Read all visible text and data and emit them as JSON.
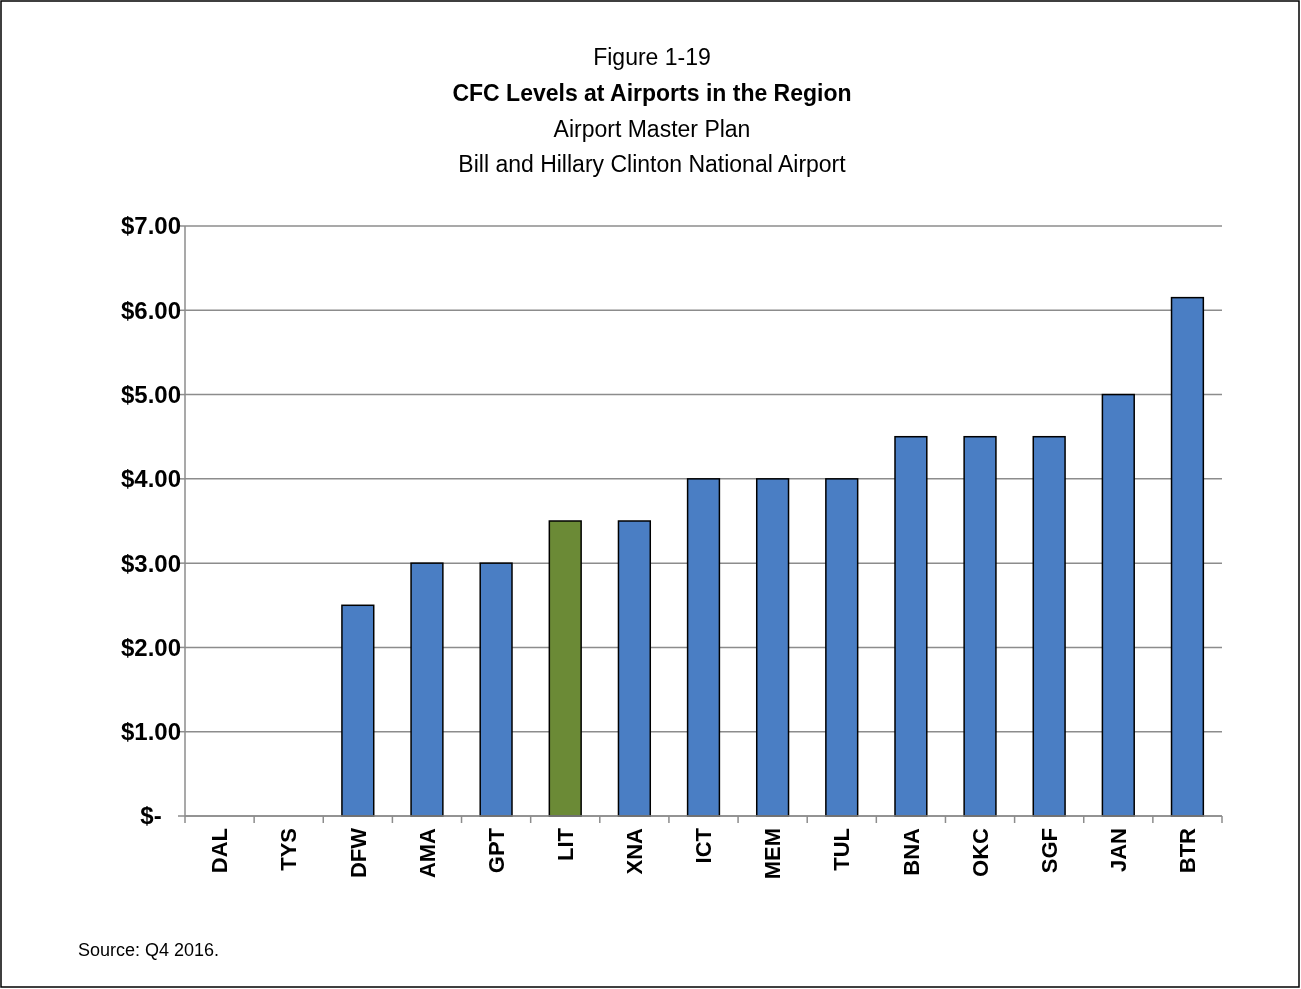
{
  "chart_data": {
    "type": "bar",
    "title": "CFC Levels at Airports in the Region",
    "subtitle": "Airport Master Plan\nBill and Hillary Clinton National Airport",
    "annotations": [
      "Figure 1-19",
      "Source: Q4 2016."
    ],
    "categories": [
      "DAL",
      "TYS",
      "DFW",
      "AMA",
      "GPT",
      "LIT",
      "XNA",
      "ICT",
      "MEM",
      "TUL",
      "BNA",
      "OKC",
      "SGF",
      "JAN",
      "BTR"
    ],
    "values": [
      0,
      0,
      2.5,
      3,
      3,
      3.5,
      3.5,
      4,
      4,
      4,
      4.5,
      4.5,
      4.5,
      5,
      6.15
    ],
    "colors": [
      "#4a7ec4",
      "#4a7ec4",
      "#4a7ec4",
      "#4a7ec4",
      "#4a7ec4",
      "#6b8a36",
      "#4a7ec4",
      "#4a7ec4",
      "#4a7ec4",
      "#4a7ec4",
      "#4a7ec4",
      "#4a7ec4",
      "#4a7ec4",
      "#4a7ec4",
      "#4a7ec4"
    ],
    "ylim": [
      0,
      7
    ],
    "yticks": [
      {
        "value": 0,
        "label": "$-"
      },
      {
        "value": 1,
        "label": "$1.00"
      },
      {
        "value": 2,
        "label": "$2.00"
      },
      {
        "value": 3,
        "label": "$3.00"
      },
      {
        "value": 4,
        "label": "$4.00"
      },
      {
        "value": 5,
        "label": "$5.00"
      },
      {
        "value": 6,
        "label": "$6.00"
      },
      {
        "value": 7,
        "label": "$7.00"
      }
    ],
    "grid": "y"
  }
}
